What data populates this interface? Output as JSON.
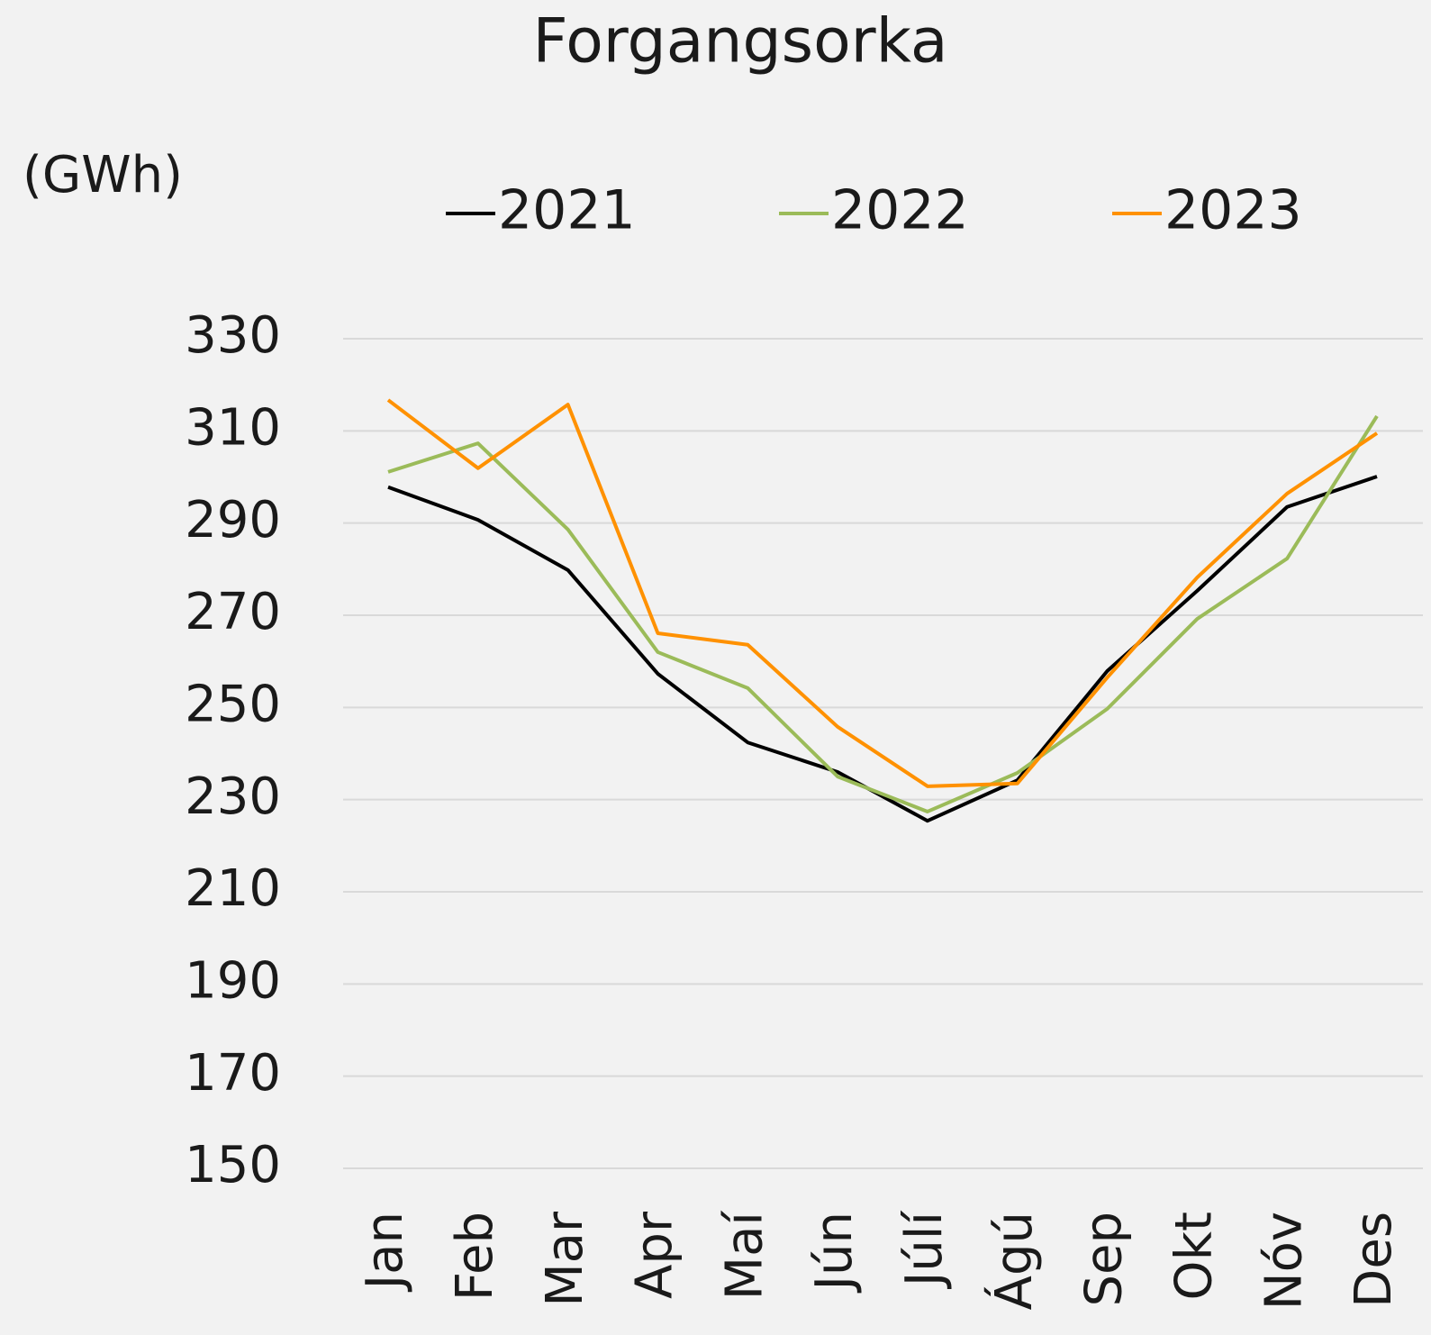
{
  "chart_data": {
    "type": "line",
    "title": "Forgangsorka",
    "y_label": "(GWh)",
    "categories": [
      "Jan",
      "Feb",
      "Mar",
      "Apr",
      "Maí",
      "Jún",
      "Júlí",
      "Ágú",
      "Sep",
      "Okt",
      "Nóv",
      "Des"
    ],
    "series": [
      {
        "name": "2021",
        "color": "#000000",
        "values": [
          297.8,
          290.7,
          279.8,
          257.3,
          242.4,
          236,
          225.4,
          234.2,
          257.9,
          275.3,
          293.5,
          300.1
        ]
      },
      {
        "name": "2022",
        "color": "#9bbb59",
        "values": [
          301.1,
          307.3,
          288.6,
          262,
          254.2,
          235,
          227.4,
          235.8,
          249.7,
          269.2,
          282.3,
          313.2
        ]
      },
      {
        "name": "2023",
        "color": "#ff9100",
        "values": [
          316.7,
          301.9,
          315.7,
          266.1,
          263.6,
          245.8,
          232.9,
          233.5,
          256.5,
          278.2,
          296.4,
          309.5
        ]
      }
    ],
    "ylim": [
      150,
      330
    ],
    "yticks": [
      150,
      170,
      190,
      210,
      230,
      250,
      270,
      290,
      310,
      330
    ],
    "grid": true,
    "legend": "top"
  }
}
